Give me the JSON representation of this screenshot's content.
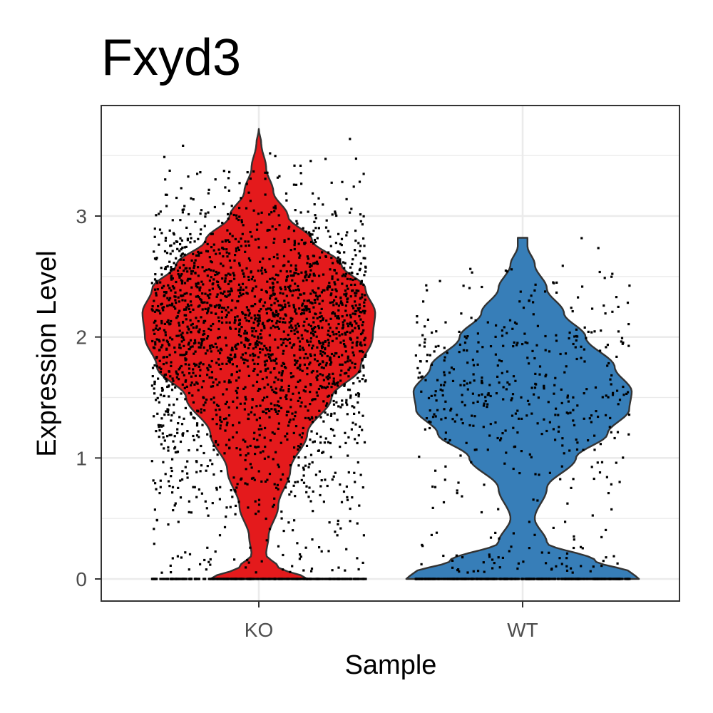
{
  "chart_data": {
    "type": "violin",
    "title": "Fxyd3",
    "xlabel": "Sample",
    "ylabel": "Expression Level",
    "categories": [
      "KO",
      "WT"
    ],
    "y_ticks": [
      "0",
      "1",
      "2",
      "3"
    ],
    "ylim": [
      -0.18,
      3.85
    ],
    "grid": true,
    "jitter_points": true,
    "series": [
      {
        "category": "KO",
        "color": "#E41A1C",
        "y_max": 3.72,
        "zero_fraction": 0.12,
        "mode": 2.15,
        "density_profile": [
          [
            0.0,
            0.2
          ],
          [
            0.1,
            0.08
          ],
          [
            0.2,
            0.03
          ],
          [
            0.35,
            0.04
          ],
          [
            0.6,
            0.08
          ],
          [
            0.9,
            0.13
          ],
          [
            1.2,
            0.2
          ],
          [
            1.5,
            0.3
          ],
          [
            1.75,
            0.42
          ],
          [
            2.0,
            0.47
          ],
          [
            2.2,
            0.48
          ],
          [
            2.4,
            0.44
          ],
          [
            2.6,
            0.34
          ],
          [
            2.8,
            0.22
          ],
          [
            3.0,
            0.12
          ],
          [
            3.2,
            0.06
          ],
          [
            3.4,
            0.03
          ],
          [
            3.6,
            0.01
          ],
          [
            3.72,
            0.0
          ]
        ]
      },
      {
        "category": "WT",
        "color": "#377EB8",
        "y_max": 2.82,
        "zero_fraction": 0.45,
        "mode": 1.5,
        "density_profile": [
          [
            0.0,
            0.48
          ],
          [
            0.05,
            0.45
          ],
          [
            0.15,
            0.3
          ],
          [
            0.3,
            0.1
          ],
          [
            0.5,
            0.05
          ],
          [
            0.75,
            0.1
          ],
          [
            1.0,
            0.22
          ],
          [
            1.2,
            0.35
          ],
          [
            1.4,
            0.44
          ],
          [
            1.55,
            0.45
          ],
          [
            1.75,
            0.38
          ],
          [
            2.0,
            0.26
          ],
          [
            2.2,
            0.17
          ],
          [
            2.4,
            0.1
          ],
          [
            2.6,
            0.05
          ],
          [
            2.75,
            0.02
          ],
          [
            2.82,
            0.02
          ]
        ]
      }
    ]
  }
}
